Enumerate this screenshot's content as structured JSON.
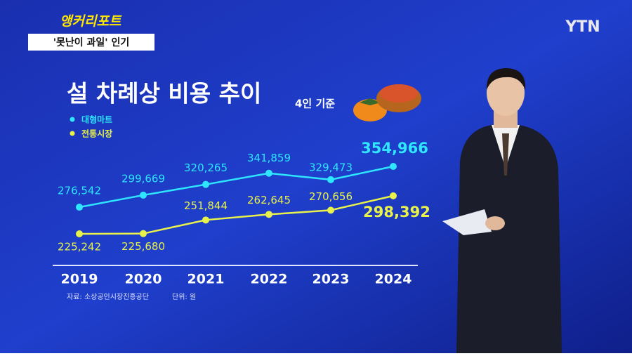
{
  "header": {
    "segment": "앵커리포트",
    "topic": "'못난이 과일' 인기",
    "logo": "YTN"
  },
  "chart_data": {
    "type": "line",
    "title": "설 차례상 비용 추이",
    "subtitle": "4인 기준",
    "categories": [
      "2019",
      "2020",
      "2021",
      "2022",
      "2023",
      "2024"
    ],
    "series": [
      {
        "name": "대형마트",
        "color": "#2ee6ff",
        "values": [
          276542,
          299669,
          320265,
          341859,
          329473,
          354966
        ],
        "value_labels": [
          "276,542",
          "299,669",
          "320,265",
          "341,859",
          "329,473",
          "354,966"
        ]
      },
      {
        "name": "전통시장",
        "color": "#e8f24a",
        "values": [
          225242,
          225680,
          251844,
          262645,
          270656,
          298392
        ],
        "value_labels": [
          "225,242",
          "225,680",
          "251,844",
          "262,645",
          "270,656",
          "298,392"
        ]
      }
    ],
    "source": "자료: 소상공인시장진흥공단",
    "unit": "단위: 원"
  }
}
